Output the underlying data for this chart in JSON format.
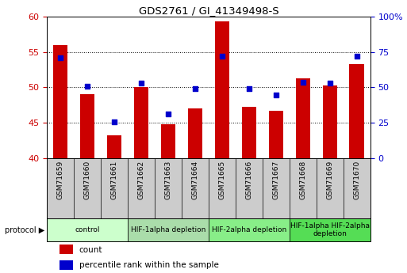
{
  "title": "GDS2761 / GI_41349498-S",
  "samples": [
    "GSM71659",
    "GSM71660",
    "GSM71661",
    "GSM71662",
    "GSM71663",
    "GSM71664",
    "GSM71665",
    "GSM71666",
    "GSM71667",
    "GSM71668",
    "GSM71669",
    "GSM71670"
  ],
  "counts": [
    56.0,
    49.0,
    43.2,
    50.0,
    44.8,
    47.0,
    59.3,
    47.3,
    46.7,
    51.3,
    50.3,
    53.3
  ],
  "percentiles": [
    71.0,
    51.0,
    25.5,
    53.0,
    31.5,
    49.0,
    72.0,
    49.0,
    44.5,
    53.5,
    53.0,
    72.0
  ],
  "ylim_left": [
    40,
    60
  ],
  "ylim_right": [
    0,
    100
  ],
  "yticks_left": [
    40,
    45,
    50,
    55,
    60
  ],
  "yticks_right": [
    0,
    25,
    50,
    75,
    100
  ],
  "ytick_labels_right": [
    "0",
    "25",
    "50",
    "75",
    "100%"
  ],
  "bar_color": "#cc0000",
  "dot_color": "#0000cc",
  "bar_width": 0.55,
  "protocol_groups": [
    {
      "label": "control",
      "start": 0,
      "end": 3,
      "color": "#ccffcc"
    },
    {
      "label": "HIF-1alpha depletion",
      "start": 3,
      "end": 6,
      "color": "#aaddaa"
    },
    {
      "label": "HIF-2alpha depletion",
      "start": 6,
      "end": 9,
      "color": "#88ee88"
    },
    {
      "label": "HIF-1alpha HIF-2alpha\ndepletion",
      "start": 9,
      "end": 12,
      "color": "#55dd55"
    }
  ],
  "bg_plot": "#ffffff",
  "tick_label_color_left": "#cc0000",
  "tick_label_color_right": "#0000cc",
  "sample_bg": "#cccccc",
  "legend_sq_size": 8
}
